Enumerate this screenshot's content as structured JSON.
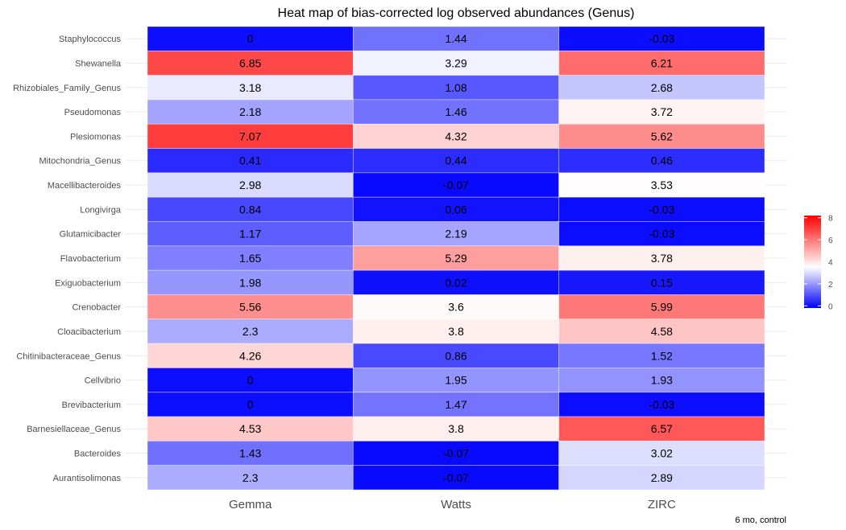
{
  "chart_data": {
    "type": "heatmap",
    "title": "Heat map of bias-corrected log observed abundances (Genus)",
    "caption": "6 mo, control",
    "xlabel": "",
    "ylabel": "",
    "columns": [
      "Gemma",
      "Watts",
      "ZIRC"
    ],
    "rows": [
      {
        "label": "Staphylococcus",
        "values": [
          0,
          1.44,
          -0.03
        ]
      },
      {
        "label": "Shewanella",
        "values": [
          6.85,
          3.29,
          6.21
        ]
      },
      {
        "label": "Rhizobiales_Family_Genus",
        "values": [
          3.18,
          1.08,
          2.68
        ]
      },
      {
        "label": "Pseudomonas",
        "values": [
          2.18,
          1.46,
          3.72
        ]
      },
      {
        "label": "Plesiomonas",
        "values": [
          7.07,
          4.32,
          5.62
        ]
      },
      {
        "label": "Mitochondria_Genus",
        "values": [
          0.41,
          0.44,
          0.46
        ]
      },
      {
        "label": "Macellibacteroides",
        "values": [
          2.98,
          -0.07,
          3.53
        ]
      },
      {
        "label": "Longivirga",
        "values": [
          0.84,
          0.06,
          -0.03
        ]
      },
      {
        "label": "Glutamicibacter",
        "values": [
          1.17,
          2.19,
          -0.03
        ]
      },
      {
        "label": "Flavobacterium",
        "values": [
          1.65,
          5.29,
          3.78
        ]
      },
      {
        "label": "Exiguobacterium",
        "values": [
          1.98,
          0.02,
          0.15
        ]
      },
      {
        "label": "Crenobacter",
        "values": [
          5.56,
          3.6,
          5.99
        ]
      },
      {
        "label": "Cloacibacterium",
        "values": [
          2.3,
          3.8,
          4.58
        ]
      },
      {
        "label": "Chitinibacteraceae_Genus",
        "values": [
          4.26,
          0.86,
          1.52
        ]
      },
      {
        "label": "Cellvibrio",
        "values": [
          0,
          1.95,
          1.93
        ]
      },
      {
        "label": "Brevibacterium",
        "values": [
          0,
          1.47,
          -0.03
        ]
      },
      {
        "label": "Barnesiellaceae_Genus",
        "values": [
          4.53,
          3.8,
          6.57
        ]
      },
      {
        "label": "Bacteroides",
        "values": [
          1.43,
          -0.07,
          3.02
        ]
      },
      {
        "label": "Aurantisolimonas",
        "values": [
          2.3,
          -0.07,
          2.89
        ]
      }
    ],
    "color_scale": {
      "low": "#0000ff",
      "mid": "#ffffff",
      "high": "#ff0000",
      "midpoint": 3.5,
      "limits": [
        -0.2,
        8.2
      ]
    },
    "legend": {
      "position": "right",
      "ticks": [
        0,
        2,
        4,
        6,
        8
      ]
    },
    "grid": true
  }
}
